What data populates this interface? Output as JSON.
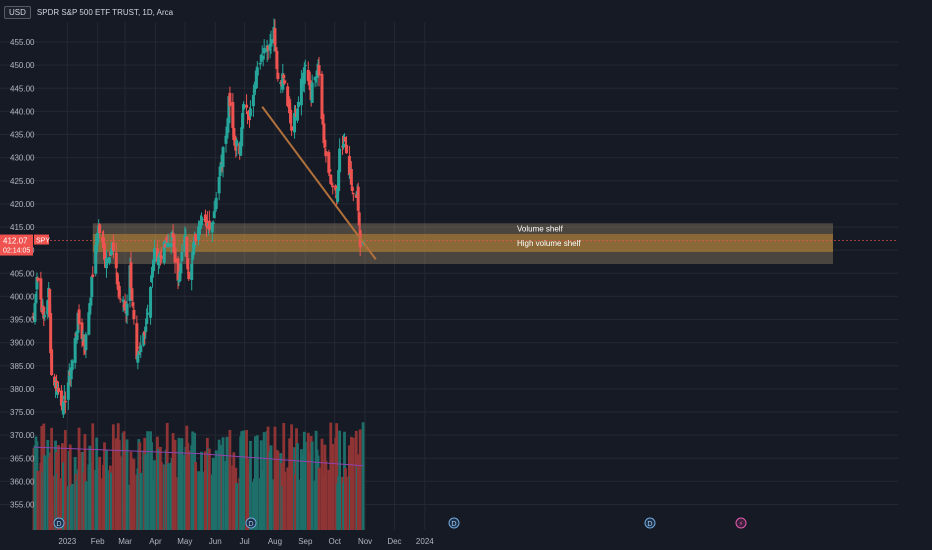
{
  "header": {
    "currency": "USD",
    "title": "SPDR S&P 500 ETF TRUST, 1D, Arca"
  },
  "price_tag": {
    "price": "412.07",
    "countdown": "02:14:05",
    "ticker": "SPY"
  },
  "zones": [
    {
      "label": "Volume shelf",
      "top": 415.8,
      "bottom": 413.5,
      "color": "#bfa27a"
    },
    {
      "label": "High volume shelf",
      "top": 413.5,
      "bottom": 409.6,
      "color": "#d29a42"
    },
    {
      "label": "",
      "top": 409.6,
      "bottom": 407.0,
      "color": "#bfa27a"
    }
  ],
  "colors": {
    "up": "#26a69a",
    "down": "#ef5350",
    "trendline": "#b2703a",
    "volume_ma": "#8e44ad",
    "price_line": "#ef5350"
  },
  "event_icons": [
    "dividend-icon",
    "dividend-icon",
    "dividend-icon",
    "dividend-icon",
    "earnings-icon"
  ],
  "chart_data": {
    "type": "candlestick",
    "x_ticks": [
      "2023",
      "Feb",
      "Mar",
      "Apr",
      "May",
      "Jun",
      "Jul",
      "Aug",
      "Sep",
      "Oct",
      "Nov",
      "Dec",
      "2024"
    ],
    "y_ticks": [
      355,
      360,
      365,
      370,
      375,
      380,
      385,
      390,
      395,
      400,
      405,
      410,
      415,
      420,
      425,
      430,
      435,
      440,
      445,
      450,
      455
    ],
    "y_tick_labels": [
      "355.00",
      "360.00",
      "365.00",
      "370.00",
      "375.00",
      "380.00",
      "385.00",
      "390.00",
      "395.00",
      "400.00",
      "405.00",
      "410.00",
      "415.00",
      "420.00",
      "425.00",
      "430.00",
      "435.00",
      "440.00",
      "445.00",
      "450.00",
      "455.00"
    ],
    "ylim": [
      350.5,
      459
    ],
    "last_price": 412.07,
    "trendline": {
      "from": {
        "date": "2023-07-19",
        "price": 441.0
      },
      "to": {
        "date": "2023-11-12",
        "price": 408.0
      }
    },
    "close_anchors": [
      [
        "2022-11-28",
        395
      ],
      [
        "2022-12-01",
        405
      ],
      [
        "2022-12-08",
        395
      ],
      [
        "2022-12-13",
        401
      ],
      [
        "2022-12-16",
        383
      ],
      [
        "2022-12-22",
        380
      ],
      [
        "2022-12-28",
        376
      ],
      [
        "2023-01-06",
        386
      ],
      [
        "2023-01-12",
        395
      ],
      [
        "2023-01-19",
        389
      ],
      [
        "2023-01-27",
        405
      ],
      [
        "2023-02-02",
        415
      ],
      [
        "2023-02-09",
        408
      ],
      [
        "2023-02-16",
        411
      ],
      [
        "2023-02-23",
        400
      ],
      [
        "2023-03-02",
        397
      ],
      [
        "2023-03-06",
        406
      ],
      [
        "2023-03-13",
        385
      ],
      [
        "2023-03-17",
        389
      ],
      [
        "2023-03-22",
        394
      ],
      [
        "2023-03-31",
        409
      ],
      [
        "2023-04-06",
        409
      ],
      [
        "2023-04-18",
        413
      ],
      [
        "2023-04-25",
        403
      ],
      [
        "2023-05-01",
        414
      ],
      [
        "2023-05-05",
        405
      ],
      [
        "2023-05-12",
        413
      ],
      [
        "2023-05-19",
        418
      ],
      [
        "2023-05-25",
        415
      ],
      [
        "2023-05-31",
        418
      ],
      [
        "2023-06-05",
        427
      ],
      [
        "2023-06-13",
        436
      ],
      [
        "2023-06-15",
        442
      ],
      [
        "2023-06-21",
        433
      ],
      [
        "2023-06-26",
        432
      ],
      [
        "2023-06-30",
        443
      ],
      [
        "2023-07-06",
        438
      ],
      [
        "2023-07-14",
        449
      ],
      [
        "2023-07-20",
        452
      ],
      [
        "2023-07-27",
        454
      ],
      [
        "2023-07-31",
        457
      ],
      [
        "2023-08-04",
        446
      ],
      [
        "2023-08-10",
        447
      ],
      [
        "2023-08-18",
        436
      ],
      [
        "2023-08-24",
        441
      ],
      [
        "2023-08-31",
        449
      ],
      [
        "2023-09-01",
        451
      ],
      [
        "2023-09-07",
        444
      ],
      [
        "2023-09-14",
        450
      ],
      [
        "2023-09-21",
        431
      ],
      [
        "2023-09-26",
        426
      ],
      [
        "2023-10-03",
        421
      ],
      [
        "2023-10-06",
        432
      ],
      [
        "2023-10-12",
        434
      ],
      [
        "2023-10-20",
        421
      ],
      [
        "2023-10-24",
        423
      ],
      [
        "2023-10-27",
        412
      ],
      [
        "2023-10-30",
        412.07
      ]
    ],
    "volume_ylim": [
      0,
      105
    ],
    "volume_ma_level": [
      58,
      45
    ]
  }
}
